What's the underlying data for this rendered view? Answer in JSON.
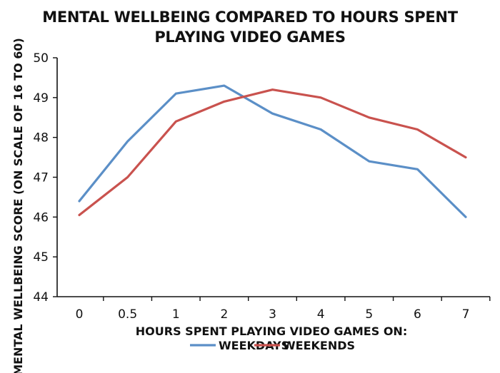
{
  "chart_data": {
    "type": "line",
    "title": "MENTAL WELLBEING COMPARED TO HOURS SPENT PLAYING VIDEO GAMES",
    "xlabel": "HOURS SPENT PLAYING VIDEO GAMES ON:",
    "ylabel": "MENTAL WELLBEING SCORE (ON SCALE OF 16 TO 60)",
    "categories": [
      "0",
      "0.5",
      "1",
      "2",
      "3",
      "4",
      "5",
      "6",
      "7"
    ],
    "ylim": [
      44,
      50
    ],
    "yticks": [
      "44",
      "45",
      "46",
      "47",
      "48",
      "49",
      "50"
    ],
    "grid": false,
    "legend_position": "bottom",
    "series": [
      {
        "name": "WEEKDAYS",
        "color": "#5b8fc7",
        "values": [
          46.4,
          47.9,
          49.1,
          49.3,
          48.6,
          48.2,
          47.4,
          47.2,
          46.0
        ]
      },
      {
        "name": "WEEKENDS",
        "color": "#c9524e",
        "values": [
          46.05,
          47.0,
          48.4,
          48.9,
          49.2,
          49.0,
          48.5,
          48.2,
          47.5
        ]
      }
    ]
  }
}
